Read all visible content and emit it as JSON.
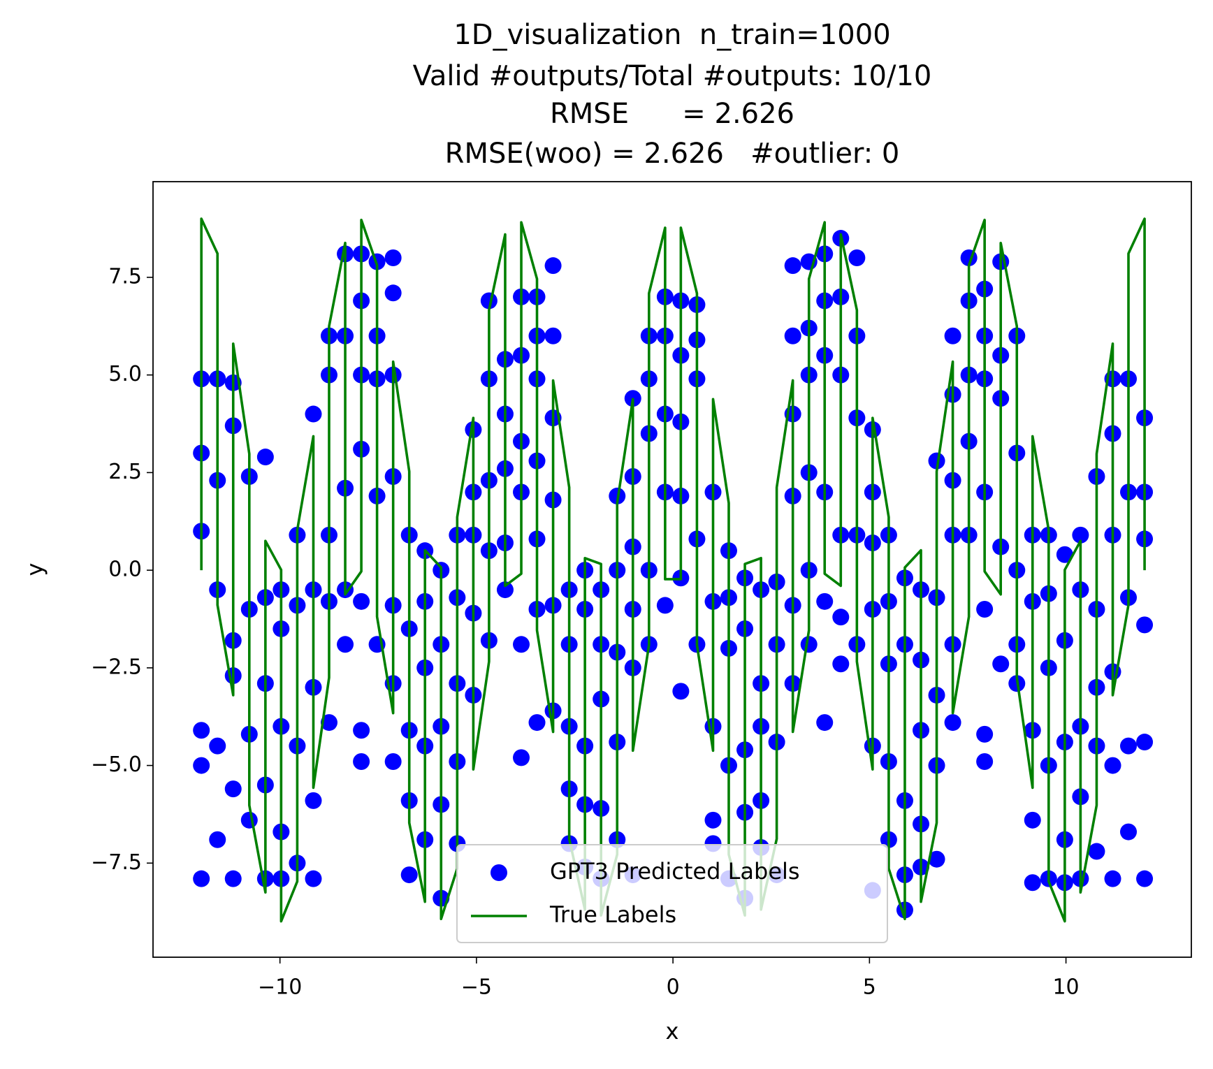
{
  "chart_data": {
    "type": "scatter",
    "title": [
      "1D_visualization  n_train=1000",
      "Valid #outputs/Total #outputs: 10/10",
      "RMSE      = 2.626",
      "RMSE(woo) = 2.626   #outlier: 0"
    ],
    "x_label": "x",
    "y_label": "y",
    "xlim": [
      -13.23,
      13.19
    ],
    "ylim": [
      -9.91,
      9.95
    ],
    "xticks": [
      {
        "value": -10,
        "label": "−10"
      },
      {
        "value": -5,
        "label": "−5"
      },
      0,
      5,
      10
    ],
    "yticks": [
      {
        "value": -7.5,
        "label": "−7.5"
      },
      {
        "value": -5,
        "label": "−5.0"
      },
      {
        "value": -2.5,
        "label": "−2.5"
      },
      {
        "value": 0,
        "label": "0.0"
      },
      2.5,
      {
        "value": 5,
        "label": "5.0"
      },
      7.5
    ],
    "legend": "lower center",
    "series": [
      {
        "name": "GPT3 Predicted Labels",
        "kind": "scatter",
        "color": "#0000ff",
        "x": [
          -12,
          -11.59,
          -11.19,
          -10.78,
          -10.37,
          -9.97,
          -9.56,
          -9.15,
          -8.75,
          -8.34,
          -7.93,
          -7.53,
          -7.12,
          -6.71,
          -6.31,
          -5.9,
          -5.49,
          -5.08,
          -4.68,
          -4.27,
          -3.86,
          -3.46,
          -3.05,
          -2.64,
          -2.24,
          -1.83,
          -1.42,
          -1.02,
          -0.61,
          -0.2,
          0.2,
          0.61,
          1.02,
          1.42,
          1.83,
          2.24,
          2.64,
          3.05,
          3.46,
          3.86,
          4.27,
          4.68,
          5.08,
          5.49,
          5.9,
          6.31,
          6.71,
          7.12,
          7.53,
          7.93,
          8.34,
          8.75,
          9.15,
          9.56,
          9.97,
          10.37,
          10.78,
          11.19,
          11.59,
          12
        ],
        "values": [
          [
            4.9,
            3.0,
            1.0,
            -4.1,
            -5.0,
            -7.9
          ],
          [
            4.9,
            2.3,
            -0.5,
            -4.5,
            -6.9
          ],
          [
            4.8,
            3.7,
            -1.8,
            -2.7,
            -5.6,
            -7.9
          ],
          [
            2.4,
            -1.0,
            -4.2,
            -6.4
          ],
          [
            2.9,
            -0.7,
            -2.9,
            -5.5,
            -7.9
          ],
          [
            -0.5,
            -1.5,
            -4.0,
            -6.7,
            -7.9
          ],
          [
            0.9,
            -0.9,
            -4.5,
            -7.5
          ],
          [
            4.0,
            -0.5,
            -3.0,
            -5.9,
            -7.9
          ],
          [
            6.0,
            5.0,
            0.9,
            -0.8,
            -3.9
          ],
          [
            8.1,
            6.0,
            2.1,
            -0.5,
            -1.9
          ],
          [
            8.1,
            6.9,
            5.0,
            3.1,
            -0.8,
            -4.1,
            -4.9
          ],
          [
            7.9,
            6.0,
            4.9,
            1.9,
            -1.9
          ],
          [
            8.0,
            7.1,
            5.0,
            2.4,
            -0.9,
            -2.9,
            -4.9
          ],
          [
            0.9,
            -1.5,
            -4.1,
            -5.9,
            -7.8
          ],
          [
            0.5,
            -0.8,
            -2.5,
            -4.5,
            -6.9
          ],
          [
            0.0,
            -1.9,
            -4.0,
            -6.0,
            -8.4
          ],
          [
            0.9,
            -0.7,
            -2.9,
            -4.9,
            -7.0
          ],
          [
            3.6,
            2.0,
            0.9,
            -1.1,
            -3.2
          ],
          [
            6.9,
            4.9,
            2.3,
            0.5,
            -1.8
          ],
          [
            5.4,
            4.0,
            2.6,
            0.7,
            -0.5
          ],
          [
            7.0,
            5.5,
            3.3,
            2.0,
            -1.9,
            -4.8
          ],
          [
            7.0,
            6.0,
            4.9,
            2.8,
            0.8,
            -1.0,
            -3.9
          ],
          [
            7.8,
            6.0,
            3.9,
            1.8,
            -0.9,
            -3.6
          ],
          [
            -0.5,
            -1.9,
            -4.0,
            -5.6,
            -7.0
          ],
          [
            0.0,
            -1.0,
            -4.5,
            -6.0,
            -7.6
          ],
          [
            -0.5,
            -1.9,
            -3.3,
            -6.1,
            -7.9
          ],
          [
            1.9,
            0.0,
            -2.1,
            -4.4,
            -6.9
          ],
          [
            4.4,
            2.4,
            0.6,
            -1.0,
            -2.5,
            -7.8
          ],
          [
            6.0,
            4.9,
            3.5,
            0.0,
            -1.9
          ],
          [
            7.0,
            6.0,
            4.0,
            2.0,
            -0.9
          ],
          [
            6.9,
            5.5,
            3.8,
            1.9,
            -0.2,
            -3.1
          ],
          [
            6.8,
            5.9,
            4.9,
            0.8,
            -1.9
          ],
          [
            2.0,
            -0.8,
            -4.0,
            -6.4,
            -7.0
          ],
          [
            0.5,
            -0.7,
            -2.0,
            -5.0,
            -7.9
          ],
          [
            -0.2,
            -1.5,
            -4.6,
            -6.2,
            -8.4
          ],
          [
            -0.5,
            -2.9,
            -4.0,
            -5.9,
            -7.1
          ],
          [
            -0.3,
            -1.9,
            -4.4,
            -7.8
          ],
          [
            7.8,
            6.0,
            4.0,
            1.9,
            -0.9,
            -2.9
          ],
          [
            7.9,
            6.2,
            5.0,
            2.5,
            0.0,
            -1.9
          ],
          [
            8.1,
            6.9,
            5.5,
            2.0,
            -0.8,
            -3.9
          ],
          [
            8.5,
            7.0,
            5.0,
            0.9,
            -1.2,
            -2.4
          ],
          [
            8.0,
            6.0,
            3.9,
            0.9,
            -1.9
          ],
          [
            3.6,
            2.0,
            0.7,
            -1.0,
            -4.5,
            -8.2
          ],
          [
            0.9,
            -0.8,
            -2.4,
            -4.9,
            -6.9
          ],
          [
            -0.2,
            -1.9,
            -5.9,
            -7.8,
            -8.7
          ],
          [
            -0.5,
            -2.3,
            -4.1,
            -6.5,
            -7.6
          ],
          [
            2.8,
            -0.7,
            -3.2,
            -5.0,
            -7.4
          ],
          [
            6.0,
            4.5,
            2.3,
            0.9,
            -1.9,
            -3.9
          ],
          [
            8.0,
            6.9,
            5.0,
            3.3,
            0.9
          ],
          [
            7.2,
            6.0,
            4.9,
            2.0,
            -1.0,
            -4.2,
            -4.9
          ],
          [
            7.9,
            5.5,
            4.4,
            0.6,
            -2.4
          ],
          [
            6.0,
            3.0,
            0.0,
            -1.9,
            -2.9
          ],
          [
            0.9,
            -0.8,
            -4.1,
            -6.4,
            -8.0
          ],
          [
            0.9,
            -0.6,
            -2.5,
            -5.0,
            -7.9
          ],
          [
            0.4,
            -1.8,
            -4.4,
            -6.9,
            -8.0
          ],
          [
            0.9,
            -0.5,
            -4.0,
            -5.8,
            -7.9
          ],
          [
            2.4,
            -1.0,
            -3.0,
            -4.5,
            -7.2
          ],
          [
            4.9,
            3.5,
            0.9,
            -2.6,
            -5.0,
            -7.9
          ],
          [
            4.9,
            2.0,
            -0.7,
            -4.5,
            -6.7
          ],
          [
            3.9,
            2.0,
            0.8,
            -1.4,
            -4.4,
            -7.9
          ]
        ]
      },
      {
        "name": "True Labels",
        "kind": "line",
        "color": "#008000",
        "x": [
          -12,
          -12,
          -11.59,
          -11.59,
          -11.19,
          -11.19,
          -10.78,
          -10.78,
          -10.37,
          -10.37,
          -9.97,
          -9.97,
          -9.56,
          -9.56,
          -9.15,
          -9.15,
          -8.75,
          -8.75,
          -8.34,
          -8.34,
          -7.93,
          -7.93,
          -7.53,
          -7.53,
          -7.12,
          -7.12,
          -6.71,
          -6.71,
          -6.31,
          -6.31,
          -5.9,
          -5.9,
          -5.49,
          -5.49,
          -5.08,
          -5.08,
          -4.68,
          -4.68,
          -4.27,
          -4.27,
          -3.86,
          -3.86,
          -3.46,
          -3.46,
          -3.05,
          -3.05,
          -2.64,
          -2.64,
          -2.24,
          -2.24,
          -1.83,
          -1.83,
          -1.42,
          -1.42,
          -1.02,
          -1.02,
          -0.61,
          -0.61,
          -0.2,
          -0.2,
          0.2,
          0.2,
          0.61,
          0.61,
          1.02,
          1.02,
          1.42,
          1.42,
          1.83,
          1.83,
          2.24,
          2.24,
          2.64,
          2.64,
          3.05,
          3.05,
          3.46,
          3.46,
          3.86,
          3.86,
          4.27,
          4.27,
          4.68,
          4.68,
          5.08,
          5.08,
          5.49,
          5.49,
          5.9,
          5.9,
          6.31,
          6.31,
          6.71,
          6.71,
          7.12,
          7.12,
          7.53,
          7.53,
          7.93,
          7.93,
          8.34,
          8.34,
          8.75,
          8.75,
          9.15,
          9.15,
          9.56,
          9.56,
          9.97,
          9.97,
          10.37,
          10.37,
          10.78,
          10.78,
          11.19,
          11.19,
          11.59,
          11.59,
          12,
          12
        ],
        "values": [
          0,
          9,
          8.11,
          -0.89,
          -3.2,
          5.8,
          2.98,
          -6.02,
          -8.25,
          0.75,
          0.01,
          -8.99,
          -7.97,
          1.03,
          3.43,
          -5.57,
          -2.75,
          6.25,
          8.38,
          -0.62,
          -0.03,
          8.97,
          7.81,
          -1.19,
          -3.66,
          5.34,
          2.53,
          -6.47,
          -8.49,
          0.51,
          0.07,
          -8.93,
          -7.64,
          1.36,
          3.9,
          -5.1,
          -2.34,
          6.66,
          8.6,
          -0.4,
          -0.09,
          8.91,
          7.46,
          -1.54,
          -4.14,
          4.86,
          2.12,
          -6.88,
          -8.69,
          0.31,
          0.16,
          -8.84,
          -7.28,
          1.72,
          4.38,
          -4.62,
          -1.91,
          7.09,
          8.77,
          -0.23,
          -0.23,
          8.77,
          7.09,
          -1.91,
          -4.62,
          4.38,
          1.72,
          -7.28,
          -8.84,
          0.16,
          0.31,
          -8.69,
          -6.88,
          2.12,
          4.86,
          -4.14,
          -1.54,
          7.46,
          8.91,
          -0.09,
          -0.4,
          8.6,
          6.66,
          -2.34,
          -5.1,
          3.9,
          1.36,
          -7.64,
          -8.93,
          0.07,
          0.51,
          -8.49,
          -6.47,
          2.53,
          5.34,
          -3.66,
          -1.19,
          7.81,
          8.97,
          -0.03,
          -0.62,
          8.38,
          6.25,
          -2.75,
          -5.57,
          3.43,
          1.03,
          -7.97,
          -8.99,
          0.01,
          0.75,
          -8.25,
          -6.02,
          2.98,
          5.8,
          -3.2,
          -0.89,
          8.11,
          9,
          0
        ]
      }
    ]
  }
}
